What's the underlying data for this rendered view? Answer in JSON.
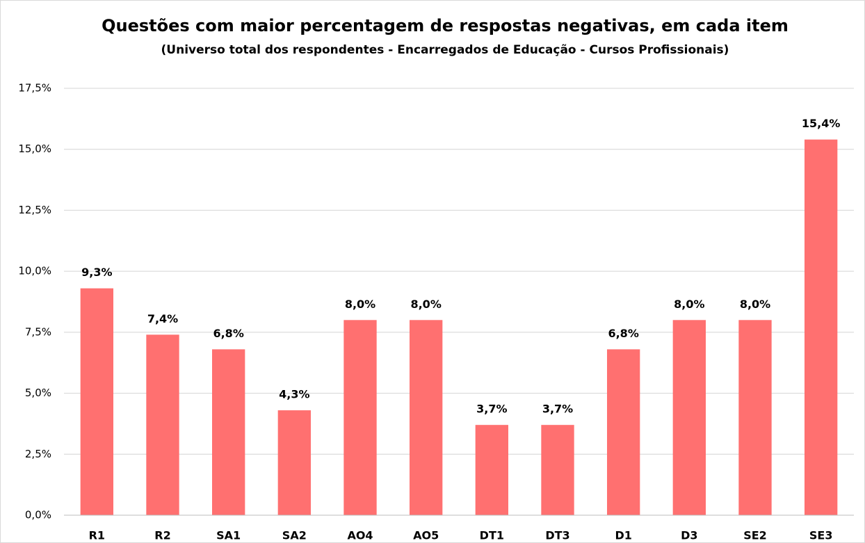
{
  "chart_data": {
    "type": "bar",
    "title": "Questões com maior percentagem de respostas negativas, em cada item",
    "subtitle": "(Universo total dos respondentes - Encarregados de Educação - Cursos Profissionais)",
    "categories": [
      "R1",
      "R2",
      "SA1",
      "SA2",
      "AO4",
      "AO5",
      "DT1",
      "DT3",
      "D1",
      "D3",
      "SE2",
      "SE3"
    ],
    "values": [
      9.3,
      7.4,
      6.8,
      4.3,
      8.0,
      8.0,
      3.7,
      3.7,
      6.8,
      8.0,
      8.0,
      15.4
    ],
    "value_labels": [
      "9,3%",
      "7,4%",
      "6,8%",
      "4,3%",
      "8,0%",
      "8,0%",
      "3,7%",
      "3,7%",
      "6,8%",
      "8,0%",
      "8,0%",
      "15,4%"
    ],
    "color": "#ff7070",
    "ylim": [
      0,
      17.5
    ],
    "yticks": [
      {
        "value": 0,
        "label": "0,0%"
      },
      {
        "value": 2.5,
        "label": "2,5%"
      },
      {
        "value": 5,
        "label": "5,0%"
      },
      {
        "value": 7.5,
        "label": "7,5%"
      },
      {
        "value": 10,
        "label": "10,0%"
      },
      {
        "value": 12.5,
        "label": "12,5%"
      },
      {
        "value": 15,
        "label": "15,0%"
      },
      {
        "value": 17.5,
        "label": "17,5%"
      }
    ],
    "grid": true
  }
}
